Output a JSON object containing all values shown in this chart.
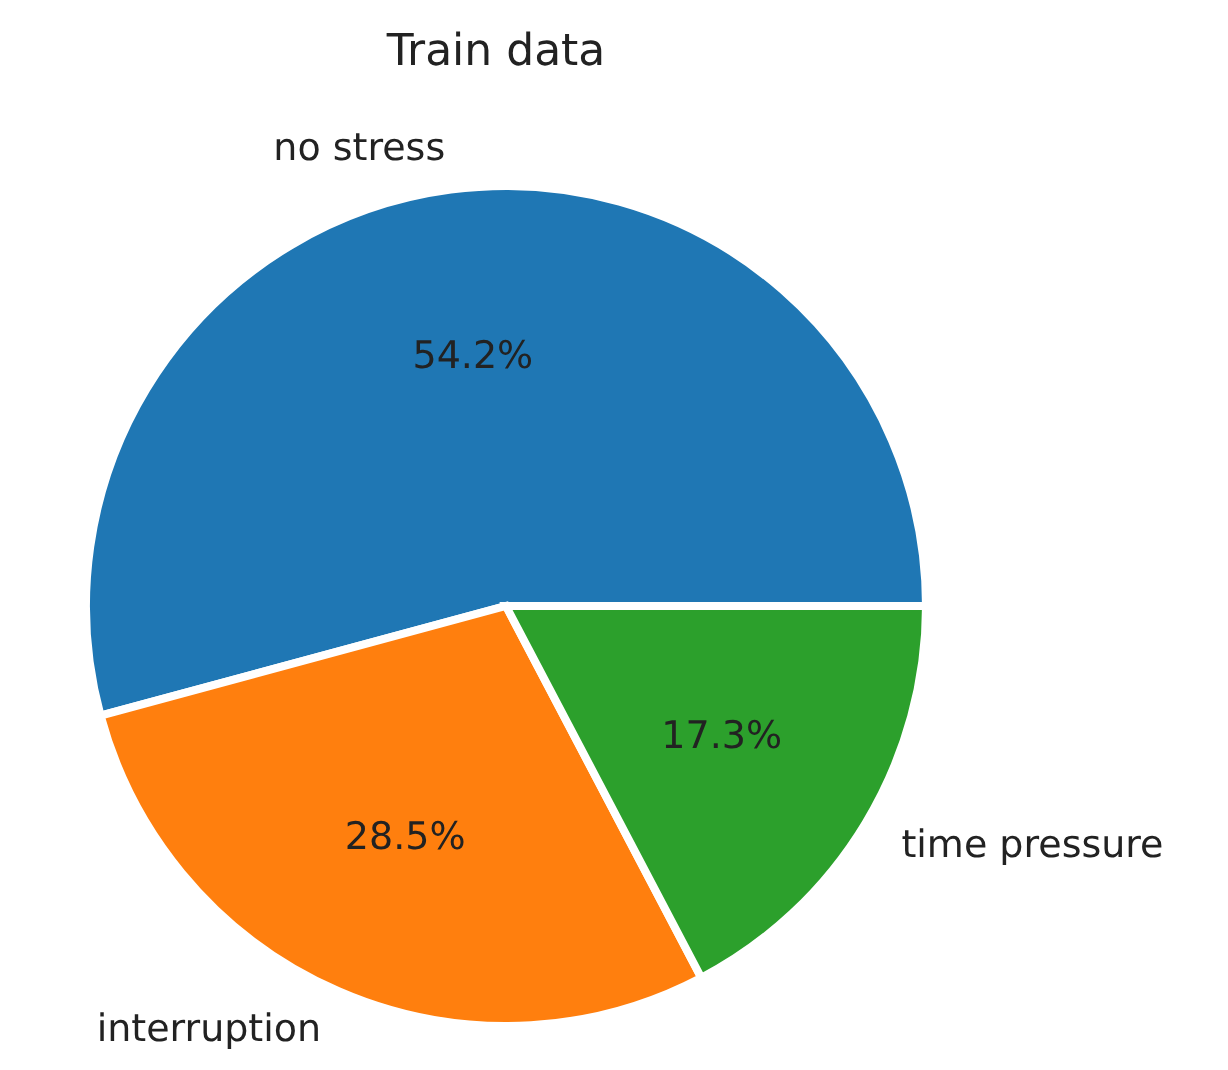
{
  "chart_data": {
    "type": "pie",
    "title": "Train data",
    "categories": [
      "no stress",
      "interruption",
      "time pressure"
    ],
    "values": [
      54.2,
      28.5,
      17.3
    ],
    "colors": [
      "#1f77b4",
      "#ff7f0e",
      "#2ca02c"
    ],
    "value_labels": [
      "54.2%",
      "28.5%",
      "17.3%"
    ],
    "legend": false
  }
}
